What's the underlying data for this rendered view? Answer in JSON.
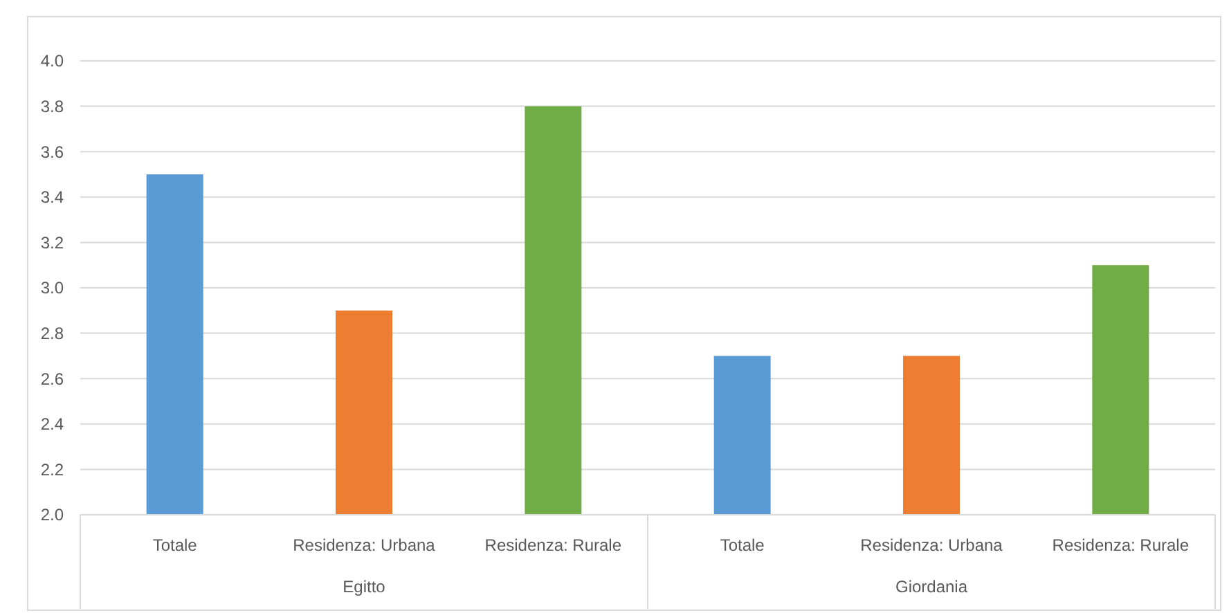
{
  "chart_data": {
    "type": "bar",
    "categories": [
      "Totale",
      "Residenza: Urbana",
      "Residenza: Rurale",
      "Totale",
      "Residenza: Urbana",
      "Residenza: Rurale"
    ],
    "values": [
      3.5,
      2.9,
      3.8,
      2.7,
      2.7,
      3.1
    ],
    "colors": [
      "#5b9bd5",
      "#ed7d31",
      "#70ad47",
      "#5b9bd5",
      "#ed7d31",
      "#70ad47"
    ],
    "ylim": [
      2.0,
      4.0
    ],
    "yticks": [
      {
        "value": 2.0,
        "label": "2.0"
      },
      {
        "value": 2.2,
        "label": "2.2"
      },
      {
        "value": 2.4,
        "label": "2.4"
      },
      {
        "value": 2.6,
        "label": "2.6"
      },
      {
        "value": 2.8,
        "label": "2.8"
      },
      {
        "value": 3.0,
        "label": "3.0"
      },
      {
        "value": 3.2,
        "label": "3.2"
      },
      {
        "value": 3.4,
        "label": "3.4"
      },
      {
        "value": 3.6,
        "label": "3.6"
      },
      {
        "value": 3.8,
        "label": "3.8"
      },
      {
        "value": 4.0,
        "label": "4.0"
      }
    ],
    "grid": "y",
    "annotations": [
      "Egitto",
      "Giordania"
    ]
  }
}
